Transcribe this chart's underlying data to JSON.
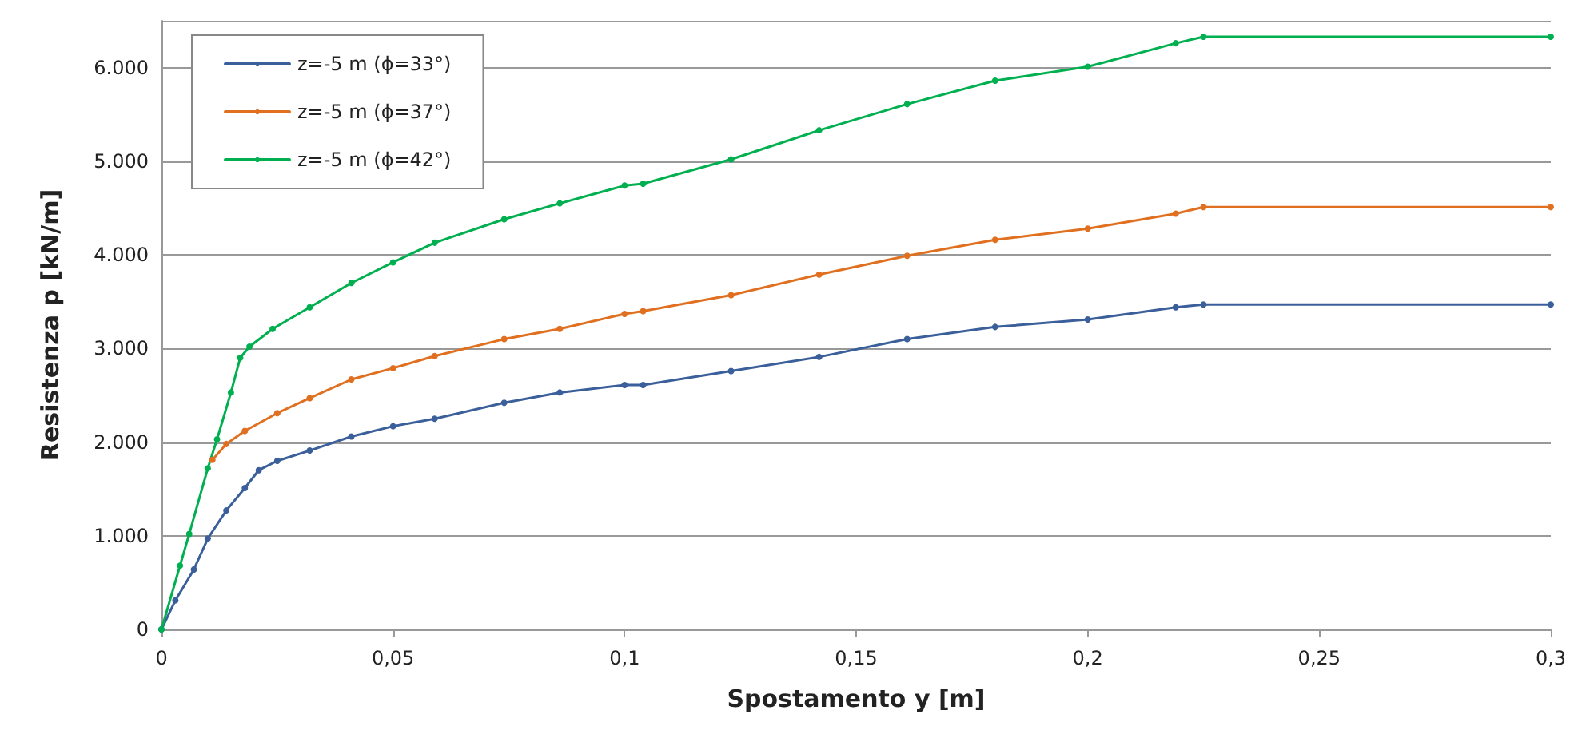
{
  "chart_data": {
    "type": "line",
    "xlabel": "Spostamento y [m]",
    "ylabel": "Resistenza p [kN/m]",
    "xlim": [
      0,
      0.3
    ],
    "xticks": [
      0,
      {
        "value": 0.05,
        "label": "0,05"
      },
      {
        "value": 0.1,
        "label": "0,1"
      },
      {
        "value": 0.15,
        "label": "0,15"
      },
      {
        "value": 0.2,
        "label": "0,2"
      },
      {
        "value": 0.25,
        "label": "0,25"
      },
      {
        "value": 0.3,
        "label": "0,3"
      }
    ],
    "ylim": [
      0,
      6500
    ],
    "yticks": [
      0,
      {
        "value": 1000,
        "label": "1.000"
      },
      {
        "value": 2000,
        "label": "2.000"
      },
      {
        "value": 3000,
        "label": "3.000"
      },
      {
        "value": 4000,
        "label": "4.000"
      },
      {
        "value": 5000,
        "label": "5.000"
      },
      {
        "value": 6000,
        "label": "6.000"
      }
    ],
    "grid": "y",
    "legend": "top left",
    "marker": "circle",
    "line_style": "solid",
    "series": [
      {
        "name": "z=-5 m (ϕ=33°)",
        "color": "#3a5f9a",
        "x": [
          0,
          0.003,
          0.007,
          0.01,
          0.014,
          0.018,
          0.021,
          0.025,
          0.032,
          0.041,
          0.05,
          0.059,
          0.074,
          0.086,
          0.1,
          0.104,
          0.123,
          0.142,
          0.161,
          0.18,
          0.2,
          0.219,
          0.225,
          0.3
        ],
        "values": [
          0,
          310,
          640,
          970,
          1270,
          1510,
          1700,
          1800,
          1910,
          2060,
          2170,
          2250,
          2420,
          2530,
          2610,
          2610,
          2760,
          2910,
          3100,
          3230,
          3310,
          3440,
          3470,
          3470
        ]
      },
      {
        "name": "z=-5 m (ϕ=37°)",
        "color": "#e07020",
        "x": [
          0.011,
          0.014,
          0.018,
          0.025,
          0.032,
          0.041,
          0.05,
          0.059,
          0.074,
          0.086,
          0.1,
          0.104,
          0.123,
          0.142,
          0.161,
          0.18,
          0.2,
          0.219,
          0.225,
          0.3
        ],
        "values": [
          1810,
          1980,
          2120,
          2310,
          2470,
          2670,
          2790,
          2920,
          3100,
          3210,
          3370,
          3400,
          3570,
          3790,
          3990,
          4160,
          4280,
          4440,
          4510,
          4510
        ]
      },
      {
        "name": "z=-5 m (ϕ=42°)",
        "color": "#00b050",
        "x": [
          0,
          0.004,
          0.006,
          0.01,
          0.012,
          0.015,
          0.017,
          0.019,
          0.024,
          0.032,
          0.041,
          0.05,
          0.059,
          0.074,
          0.086,
          0.1,
          0.104,
          0.123,
          0.142,
          0.161,
          0.18,
          0.2,
          0.219,
          0.225,
          0.3
        ],
        "values": [
          0,
          680,
          1020,
          1720,
          2030,
          2530,
          2900,
          3020,
          3210,
          3440,
          3700,
          3920,
          4130,
          4380,
          4550,
          4740,
          4760,
          5020,
          5330,
          5610,
          5860,
          6010,
          6260,
          6330,
          6330
        ]
      }
    ]
  }
}
